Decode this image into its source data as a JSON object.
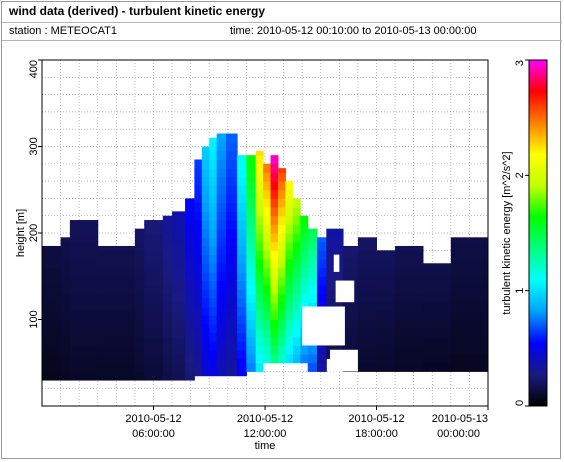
{
  "header": {
    "title": "wind data (derived) - turbulent kinetic energy",
    "station": "station : METEOCAT1",
    "time_range": "time: 2010-05-12 00:10:00 to 2010-05-13 00:00:00"
  },
  "chart_data": {
    "type": "heatmap",
    "xlabel": "time",
    "ylabel": "height [m]",
    "colorbar_label": "turbulent kinetic energy [m^2/s^2]",
    "x_unit": "hours since 2010-05-12 00:00",
    "xlim": [
      0,
      24
    ],
    "ylim": [
      0,
      400
    ],
    "clim": [
      0,
      3
    ],
    "x_ticks": [
      {
        "value": 6,
        "date": "2010-05-12",
        "time": "06:00:00"
      },
      {
        "value": 12,
        "date": "2010-05-12",
        "time": "12:00:00"
      },
      {
        "value": 18,
        "date": "2010-05-12",
        "time": "18:00:00"
      },
      {
        "value": 24,
        "date": "2010-05-13",
        "time": "00:00:00"
      }
    ],
    "y_ticks": [
      {
        "value": 100,
        "label": "100"
      },
      {
        "value": 200,
        "label": "200"
      },
      {
        "value": 300,
        "label": "300"
      },
      {
        "value": 400,
        "label": "400"
      }
    ],
    "c_ticks": [
      {
        "value": 0,
        "label": "0"
      },
      {
        "value": 1,
        "label": "1"
      },
      {
        "value": 2,
        "label": "2"
      },
      {
        "value": 3,
        "label": "3"
      }
    ],
    "grid": true,
    "colormap": [
      "#000000",
      "#1a1a80",
      "#0000ff",
      "#00a0ff",
      "#00ffff",
      "#00ff80",
      "#00ff00",
      "#c0ff00",
      "#ffff00",
      "#ff8000",
      "#ff0000",
      "#ff00ff"
    ],
    "columns": [
      {
        "x0": 0.0,
        "x1": 1.0,
        "ylow": 30,
        "ytop": 185,
        "tke": 0.12
      },
      {
        "x0": 1.0,
        "x1": 1.5,
        "ylow": 30,
        "ytop": 195,
        "tke": 0.14
      },
      {
        "x0": 1.5,
        "x1": 3.0,
        "ylow": 30,
        "ytop": 215,
        "tke": 0.16
      },
      {
        "x0": 3.0,
        "x1": 5.0,
        "ylow": 30,
        "ytop": 185,
        "tke": 0.15
      },
      {
        "x0": 5.0,
        "x1": 5.5,
        "ylow": 30,
        "ytop": 205,
        "tke": 0.18
      },
      {
        "x0": 5.5,
        "x1": 6.5,
        "ylow": 30,
        "ytop": 215,
        "tke": 0.22
      },
      {
        "x0": 6.5,
        "x1": 7.0,
        "ylow": 30,
        "ytop": 220,
        "tke": 0.28
      },
      {
        "x0": 7.0,
        "x1": 7.7,
        "ylow": 30,
        "ytop": 225,
        "tke": 0.32
      },
      {
        "x0": 7.7,
        "x1": 8.2,
        "ylow": 30,
        "ytop": 240,
        "tke": 0.45
      },
      {
        "x0": 8.2,
        "x1": 8.6,
        "ylow": 35,
        "ytop": 285,
        "tke": 0.55
      },
      {
        "x0": 8.6,
        "x1": 9.0,
        "ylow": 35,
        "ytop": 300,
        "tke": 0.8
      },
      {
        "x0": 9.0,
        "x1": 9.4,
        "ylow": 35,
        "ytop": 310,
        "tke": 0.9
      },
      {
        "x0": 9.4,
        "x1": 9.9,
        "ylow": 35,
        "ytop": 315,
        "tke": 0.7
      },
      {
        "x0": 9.9,
        "x1": 10.5,
        "ylow": 35,
        "ytop": 315,
        "tke": 0.6
      },
      {
        "x0": 10.5,
        "x1": 11.0,
        "ylow": 35,
        "ytop": 290,
        "tke": 0.95
      },
      {
        "x0": 11.0,
        "x1": 11.5,
        "ylow": 40,
        "ytop": 290,
        "tke": 1.4
      },
      {
        "x0": 11.5,
        "x1": 11.9,
        "ylow": 40,
        "ytop": 295,
        "tke": 1.9
      },
      {
        "x0": 11.9,
        "x1": 12.3,
        "ylow": 50,
        "ytop": 280,
        "tke": 2.1
      },
      {
        "x0": 12.3,
        "x1": 12.7,
        "ylow": 50,
        "ytop": 290,
        "tke": 2.5
      },
      {
        "x0": 12.7,
        "x1": 13.1,
        "ylow": 50,
        "ytop": 275,
        "tke": 2.2
      },
      {
        "x0": 13.1,
        "x1": 13.5,
        "ylow": 50,
        "ytop": 260,
        "tke": 1.85
      },
      {
        "x0": 13.5,
        "x1": 13.9,
        "ylow": 50,
        "ytop": 240,
        "tke": 1.65
      },
      {
        "x0": 13.9,
        "x1": 14.3,
        "ylow": 50,
        "ytop": 220,
        "tke": 1.4
      },
      {
        "x0": 14.3,
        "x1": 14.8,
        "ylow": 40,
        "ytop": 205,
        "tke": 1.25
      },
      {
        "x0": 14.8,
        "x1": 15.3,
        "ylow": 40,
        "ytop": 195,
        "tke": 0.6
      },
      {
        "x0": 15.3,
        "x1": 16.2,
        "ylow": 55,
        "ytop": 205,
        "tke": 0.3
      },
      {
        "x0": 16.2,
        "x1": 17.0,
        "ylow": 40,
        "ytop": 185,
        "tke": 0.2
      },
      {
        "x0": 17.0,
        "x1": 18.0,
        "ylow": 40,
        "ytop": 195,
        "tke": 0.18
      },
      {
        "x0": 18.0,
        "x1": 19.0,
        "ylow": 40,
        "ytop": 180,
        "tke": 0.17
      },
      {
        "x0": 19.0,
        "x1": 20.5,
        "ylow": 40,
        "ytop": 185,
        "tke": 0.15
      },
      {
        "x0": 20.5,
        "x1": 22.0,
        "ylow": 40,
        "ytop": 165,
        "tke": 0.14
      },
      {
        "x0": 22.0,
        "x1": 24.0,
        "ylow": 40,
        "ytop": 195,
        "tke": 0.13
      }
    ],
    "gaps": [
      {
        "x0": 14.0,
        "x1": 16.3,
        "ylow": 70,
        "ytop": 115
      },
      {
        "x0": 15.8,
        "x1": 16.8,
        "ylow": 120,
        "ytop": 145
      },
      {
        "x0": 15.5,
        "x1": 17.0,
        "ylow": 40,
        "ytop": 65
      },
      {
        "x0": 15.7,
        "x1": 16.0,
        "ylow": 155,
        "ytop": 175
      }
    ]
  }
}
